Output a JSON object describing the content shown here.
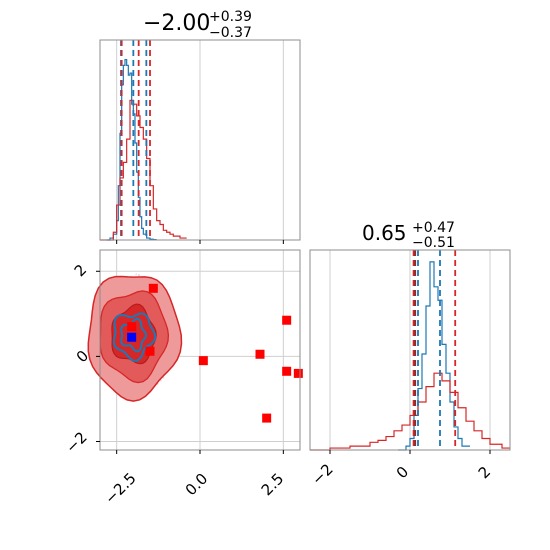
{
  "chart_data": [
    {
      "type": "histogram",
      "panel": "top-left marginal",
      "title_value": "−2.00",
      "title_plus": "+0.39",
      "title_minus": "−0.37",
      "xlim": [
        -3.0,
        3.0
      ],
      "grid": true,
      "series": [
        {
          "color": "#1f77b4",
          "x": [
            -2.8,
            -2.7,
            -2.6,
            -2.5,
            -2.45,
            -2.4,
            -2.35,
            -2.3,
            -2.25,
            -2.2,
            -2.15,
            -2.1,
            -2.05,
            -2.0,
            -1.95,
            -1.9,
            -1.85,
            -1.8,
            -1.75,
            -1.7,
            -1.6,
            -1.5,
            -1.4,
            -1.3
          ],
          "y": [
            0.0,
            0.01,
            0.03,
            0.1,
            0.28,
            0.55,
            0.8,
            0.9,
            0.93,
            0.9,
            0.85,
            0.86,
            0.7,
            0.65,
            0.5,
            0.35,
            0.22,
            0.12,
            0.06,
            0.03,
            0.01,
            0.004,
            0.002,
            0.0
          ]
        },
        {
          "color": "#d62728",
          "x": [
            -3.0,
            -2.8,
            -2.6,
            -2.5,
            -2.4,
            -2.3,
            -2.2,
            -2.1,
            -2.0,
            -1.9,
            -1.8,
            -1.7,
            -1.6,
            -1.5,
            -1.4,
            -1.3,
            -1.2,
            -1.1,
            -1.0,
            -0.9,
            -0.8,
            -0.6,
            -0.4
          ],
          "y": [
            0.0,
            0.0,
            0.04,
            0.18,
            0.32,
            0.4,
            0.52,
            0.72,
            0.7,
            0.64,
            0.58,
            0.52,
            0.42,
            0.28,
            0.16,
            0.1,
            0.08,
            0.05,
            0.04,
            0.03,
            0.02,
            0.01,
            0.0
          ]
        }
      ],
      "quantile_lines": [
        {
          "color": "#1f77b4",
          "values": [
            -2.37,
            -2.0,
            -1.61
          ]
        },
        {
          "color": "#d62728",
          "values": [
            -2.35,
            -1.84,
            -1.5
          ]
        }
      ],
      "x_ticks": [
        -2.5,
        0.0,
        2.5
      ]
    },
    {
      "type": "contour-scatter",
      "panel": "bottom-left joint",
      "xlim": [
        -3.0,
        3.0
      ],
      "ylim": [
        -2.2,
        2.5
      ],
      "grid": true,
      "x_tick_labels": [
        "−2.5",
        "0.0",
        "2.5"
      ],
      "y_tick_labels": [
        "−2",
        "0",
        "2"
      ],
      "y_ticks": [
        -2,
        0,
        2
      ],
      "x_ticks": [
        -2.5,
        0.0,
        2.5
      ],
      "contour_center": [
        -2.0,
        0.5
      ],
      "red_squares": {
        "color": "#ff0000",
        "x": [
          -1.4,
          -2.05,
          -1.5,
          0.1,
          1.8,
          2.6,
          2.6,
          2.95,
          2.0
        ],
        "y": [
          1.6,
          0.7,
          0.12,
          -0.1,
          0.05,
          0.85,
          -0.35,
          -0.4,
          -1.45
        ]
      },
      "blue_square": {
        "color": "#0000ff",
        "x": -2.05,
        "y": 0.45
      }
    },
    {
      "type": "histogram",
      "panel": "bottom-right marginal",
      "title_value": "0.65",
      "title_plus": "+0.47",
      "title_minus": "−0.51",
      "xlim": [
        -2.5,
        2.5
      ],
      "grid": true,
      "x_tick_labels": [
        "−2",
        "0",
        "2"
      ],
      "x_ticks": [
        -2,
        0,
        2
      ],
      "series": [
        {
          "color": "#1f77b4",
          "x": [
            -0.3,
            -0.1,
            0.0,
            0.1,
            0.2,
            0.3,
            0.4,
            0.5,
            0.6,
            0.7,
            0.8,
            0.9,
            1.0,
            1.1,
            1.2,
            1.3,
            1.5
          ],
          "y": [
            0.0,
            0.02,
            0.06,
            0.18,
            0.32,
            0.5,
            0.75,
            0.98,
            0.85,
            0.78,
            0.55,
            0.4,
            0.25,
            0.12,
            0.06,
            0.02,
            0.0
          ]
        },
        {
          "color": "#d62728",
          "x": [
            -2.5,
            -2.0,
            -1.5,
            -1.0,
            -0.8,
            -0.6,
            -0.4,
            -0.2,
            0.0,
            0.2,
            0.4,
            0.6,
            0.8,
            1.0,
            1.2,
            1.4,
            1.6,
            1.8,
            2.0,
            2.3,
            2.5
          ],
          "y": [
            0.0,
            0.01,
            0.02,
            0.04,
            0.05,
            0.07,
            0.1,
            0.13,
            0.18,
            0.25,
            0.33,
            0.4,
            0.36,
            0.3,
            0.22,
            0.15,
            0.1,
            0.06,
            0.03,
            0.01,
            0.0
          ]
        }
      ],
      "quantile_lines": [
        {
          "color": "#d62728",
          "values": [
            0.09,
            1.13
          ]
        },
        {
          "color": "#1f77b4",
          "values": [
            0.2,
            0.75
          ]
        },
        {
          "color": "#8b2b2b",
          "values": [
            0.13
          ]
        }
      ]
    }
  ]
}
